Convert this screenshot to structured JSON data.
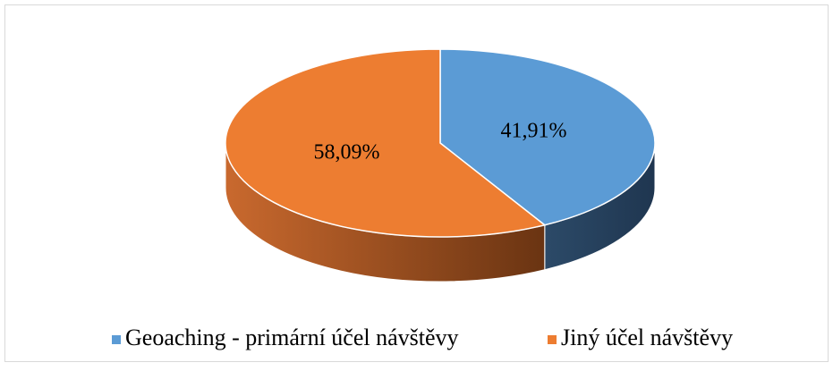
{
  "chart_data": {
    "type": "pie",
    "categories": [
      "Geoaching - primární účel návštěvy",
      "Jiný účel návštěvy"
    ],
    "values": [
      41.91,
      58.09
    ],
    "value_labels": [
      "41,91%",
      "58,09%"
    ],
    "colors": [
      "#5b9bd5",
      "#ed7d31"
    ],
    "legend": "bottom"
  }
}
